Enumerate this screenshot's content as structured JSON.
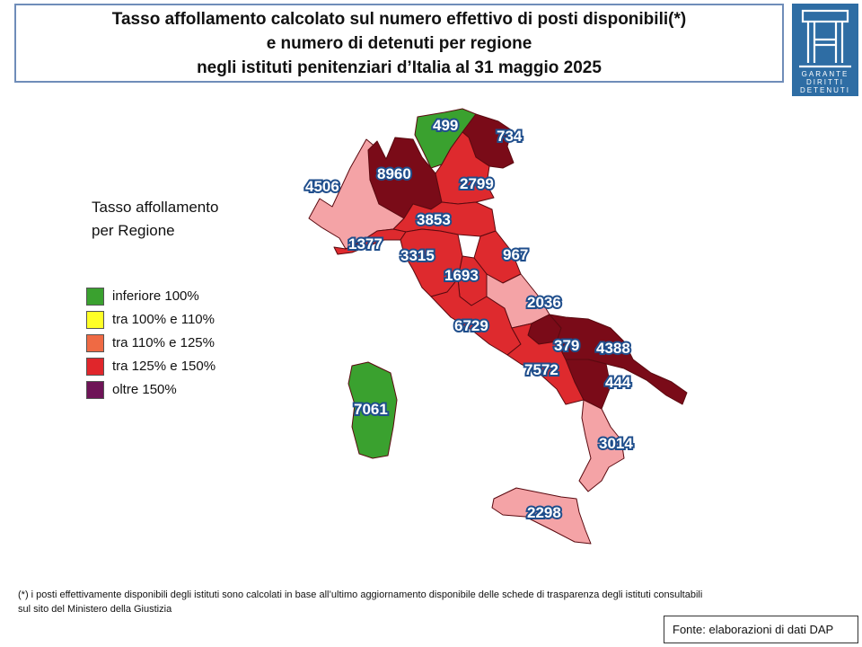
{
  "title": {
    "lines": [
      "Tasso affollamento calcolato sul numero effettivo di posti disponibili(*)",
      "e numero di detenuti per regione",
      "negli istituti penitenziari d’Italia al 31 maggio 2025"
    ]
  },
  "logo": {
    "lines": [
      "GARANTE",
      "DIRITTI",
      "DETENUTI"
    ]
  },
  "legend": {
    "title": "Tasso affollamento per Regione",
    "items": [
      {
        "label": "inferiore 100%",
        "color": "#3aa12f"
      },
      {
        "label": "tra 100% e 110%",
        "color": "#ffff26"
      },
      {
        "label": "tra 110% e 125%",
        "color": "#ef6a44"
      },
      {
        "label": "tra 125% e 150%",
        "color": "#e0262b"
      },
      {
        "label": "oltre 150%",
        "color": "#6e1457"
      }
    ]
  },
  "map": {
    "colors": {
      "green": "#3aa12f",
      "light_red": "#f4a3a6",
      "red": "#de2a2e",
      "dark_red": "#7a0b18"
    },
    "regions": [
      {
        "name": "Trentino-Alto Adige",
        "detenuti": "499",
        "color": "#3aa12f"
      },
      {
        "name": "Friuli Venezia Giulia",
        "detenuti": "734",
        "color": "#7a0b18"
      },
      {
        "name": "Lombardia",
        "detenuti": "8960",
        "color": "#7a0b18"
      },
      {
        "name": "Piemonte",
        "detenuti": "4506",
        "color": "#f4a3a6"
      },
      {
        "name": "Veneto",
        "detenuti": "2799",
        "color": "#de2a2e"
      },
      {
        "name": "Emilia-Romagna",
        "detenuti": "3853",
        "color": "#de2a2e"
      },
      {
        "name": "Liguria",
        "detenuti": "1377",
        "color": "#de2a2e"
      },
      {
        "name": "Toscana",
        "detenuti": "3315",
        "color": "#de2a2e"
      },
      {
        "name": "Marche",
        "detenuti": "967",
        "color": "#de2a2e"
      },
      {
        "name": "Umbria",
        "detenuti": "1693",
        "color": "#de2a2e"
      },
      {
        "name": "Abruzzo",
        "detenuti": "2036",
        "color": "#f4a3a6"
      },
      {
        "name": "Lazio",
        "detenuti": "6729",
        "color": "#de2a2e"
      },
      {
        "name": "Molise",
        "detenuti": "379",
        "color": "#7a0b18"
      },
      {
        "name": "Puglia",
        "detenuti": "4388",
        "color": "#7a0b18"
      },
      {
        "name": "Campania",
        "detenuti": "7572",
        "color": "#de2a2e"
      },
      {
        "name": "Basilicata",
        "detenuti": "444",
        "color": "#7a0b18"
      },
      {
        "name": "Calabria",
        "detenuti": "3014",
        "color": "#f4a3a6"
      },
      {
        "name": "Sardegna",
        "detenuti": "2298",
        "color": "#3aa12f"
      },
      {
        "name": "Sicilia",
        "detenuti": "7061",
        "color": "#f4a3a6"
      }
    ]
  },
  "footnote": {
    "line1": "(*) i posti effettivamente disponibili  degli istituti sono calcolati in base all’ultimo aggiornamento disponibile  delle schede di trasparenza degli istituti consultabili",
    "line2": "sul sito del Ministero della Giustizia"
  },
  "source": "Fonte: elaborazioni di dati DAP"
}
